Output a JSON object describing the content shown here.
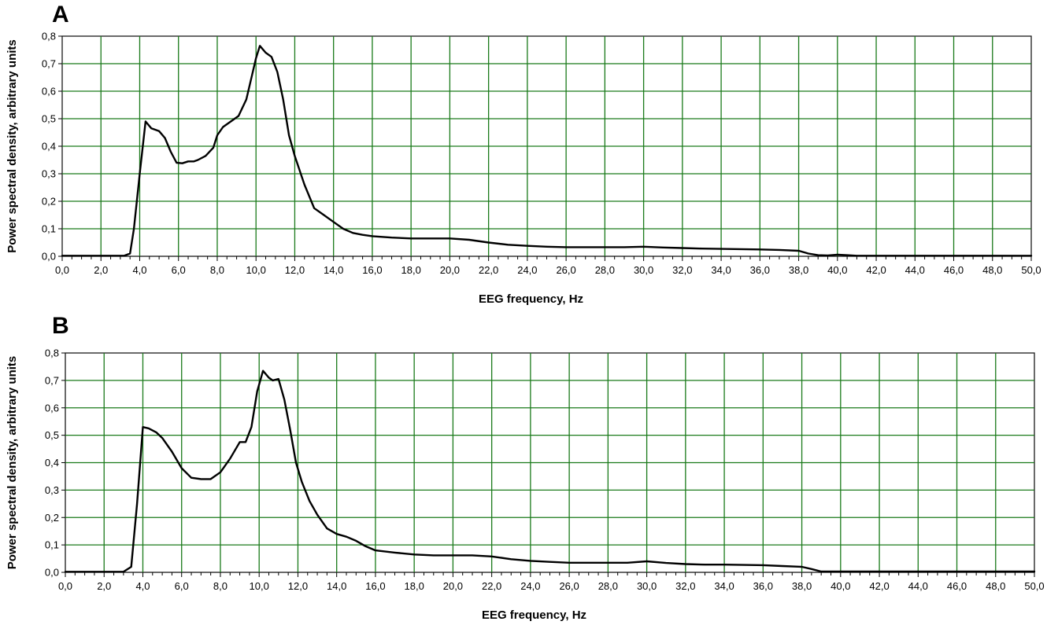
{
  "chart_data": [
    {
      "type": "line",
      "panel_label": "A",
      "xlabel": "EEG frequency, Hz",
      "ylabel": "Power spectral density, arbitrary units",
      "xlim": [
        0,
        50
      ],
      "ylim": [
        0,
        0.8
      ],
      "grid": true,
      "colors": {
        "line": "#000000",
        "grid": "#1a7a1a",
        "frame": "#1a1a1a"
      },
      "x_ticks": [
        "0,0",
        "2,0",
        "4,0",
        "6,0",
        "8,0",
        "10,0",
        "12,0",
        "14,0",
        "16,0",
        "18,0",
        "20,0",
        "22,0",
        "24,0",
        "26,0",
        "28,0",
        "30,0",
        "32,0",
        "34,0",
        "36,0",
        "38,0",
        "40,0",
        "42,0",
        "44,0",
        "46,0",
        "48,0",
        "50,0"
      ],
      "y_ticks": [
        "0,0",
        "0,1",
        "0,2",
        "0,3",
        "0,4",
        "0,5",
        "0,6",
        "0,7",
        "0,8"
      ],
      "series": [
        {
          "x": [
            0,
            3.2,
            3.5,
            3.7,
            4.0,
            4.3,
            4.6,
            5.0,
            5.3,
            5.6,
            5.9,
            6.2,
            6.5,
            6.8,
            7.0,
            7.4,
            7.8,
            8.0,
            8.3,
            8.7,
            9.1,
            9.5,
            9.8,
            10.0,
            10.2,
            10.5,
            10.8,
            11.1,
            11.4,
            11.7,
            12.0,
            12.5,
            13.0,
            13.5,
            14.0,
            14.5,
            15.0,
            15.5,
            16.0,
            17.0,
            18.0,
            19.0,
            20.0,
            21.0,
            22.0,
            23.0,
            24.0,
            25.0,
            26.0,
            27.0,
            28.0,
            29.0,
            30.0,
            31.0,
            32.0,
            33.0,
            34.0,
            35.0,
            36.0,
            37.0,
            38.0,
            38.5,
            39.0,
            39.5,
            40.0,
            40.5,
            41.0,
            42.0,
            44.0,
            46.0,
            48.0,
            50.0
          ],
          "y": [
            0.002,
            0.002,
            0.01,
            0.1,
            0.3,
            0.49,
            0.465,
            0.455,
            0.43,
            0.38,
            0.34,
            0.338,
            0.345,
            0.345,
            0.35,
            0.365,
            0.395,
            0.44,
            0.47,
            0.49,
            0.51,
            0.57,
            0.66,
            0.72,
            0.765,
            0.74,
            0.725,
            0.67,
            0.57,
            0.44,
            0.365,
            0.26,
            0.175,
            0.15,
            0.125,
            0.1,
            0.085,
            0.078,
            0.073,
            0.068,
            0.065,
            0.065,
            0.065,
            0.06,
            0.05,
            0.042,
            0.038,
            0.035,
            0.033,
            0.033,
            0.033,
            0.033,
            0.035,
            0.032,
            0.03,
            0.028,
            0.027,
            0.026,
            0.025,
            0.023,
            0.02,
            0.01,
            0.004,
            0.003,
            0.006,
            0.004,
            0.002,
            0.002,
            0.002,
            0.002,
            0.002,
            0.002
          ]
        }
      ]
    },
    {
      "type": "line",
      "panel_label": "B",
      "xlabel": "EEG frequency, Hz",
      "ylabel": "Power spectral density, arbitrary units",
      "xlim": [
        0,
        50
      ],
      "ylim": [
        0,
        0.8
      ],
      "grid": true,
      "colors": {
        "line": "#000000",
        "grid": "#1a7a1a",
        "frame": "#1a1a1a"
      },
      "x_ticks": [
        "0,0",
        "2,0",
        "4,0",
        "6,0",
        "8,0",
        "10,0",
        "12,0",
        "14,0",
        "16,0",
        "18,0",
        "20,0",
        "22,0",
        "24,0",
        "26,0",
        "28,0",
        "30,0",
        "32,0",
        "34,0",
        "36,0",
        "38,0",
        "40,0",
        "42,0",
        "44,0",
        "46,0",
        "48,0",
        "50,0"
      ],
      "y_ticks": [
        "0,0",
        "0,1",
        "0,2",
        "0,3",
        "0,4",
        "0,5",
        "0,6",
        "0,7",
        "0,8"
      ],
      "series": [
        {
          "x": [
            0,
            3.0,
            3.4,
            3.7,
            4.0,
            4.3,
            4.7,
            5.0,
            5.5,
            6.0,
            6.5,
            7.0,
            7.5,
            8.0,
            8.5,
            9.0,
            9.3,
            9.6,
            9.9,
            10.2,
            10.5,
            10.7,
            11.0,
            11.3,
            11.6,
            11.9,
            12.2,
            12.6,
            13.0,
            13.5,
            14.0,
            14.5,
            15.0,
            15.5,
            16.0,
            17.0,
            18.0,
            19.0,
            20.0,
            21.0,
            22.0,
            23.0,
            24.0,
            25.0,
            26.0,
            27.0,
            28.0,
            29.0,
            30.0,
            31.0,
            32.0,
            33.0,
            34.0,
            35.0,
            36.0,
            37.0,
            38.0,
            38.5,
            39.0,
            40.0,
            42.0,
            44.0,
            46.0,
            48.0,
            50.0
          ],
          "y": [
            0.002,
            0.002,
            0.02,
            0.25,
            0.53,
            0.525,
            0.51,
            0.49,
            0.44,
            0.38,
            0.345,
            0.34,
            0.34,
            0.365,
            0.415,
            0.475,
            0.475,
            0.53,
            0.66,
            0.735,
            0.71,
            0.7,
            0.705,
            0.63,
            0.52,
            0.4,
            0.33,
            0.26,
            0.21,
            0.16,
            0.14,
            0.13,
            0.115,
            0.095,
            0.08,
            0.072,
            0.065,
            0.062,
            0.062,
            0.062,
            0.058,
            0.048,
            0.042,
            0.038,
            0.035,
            0.035,
            0.035,
            0.035,
            0.04,
            0.034,
            0.03,
            0.028,
            0.028,
            0.027,
            0.026,
            0.023,
            0.02,
            0.012,
            0.003,
            0.003,
            0.003,
            0.003,
            0.003,
            0.003,
            0.003
          ]
        }
      ]
    }
  ]
}
